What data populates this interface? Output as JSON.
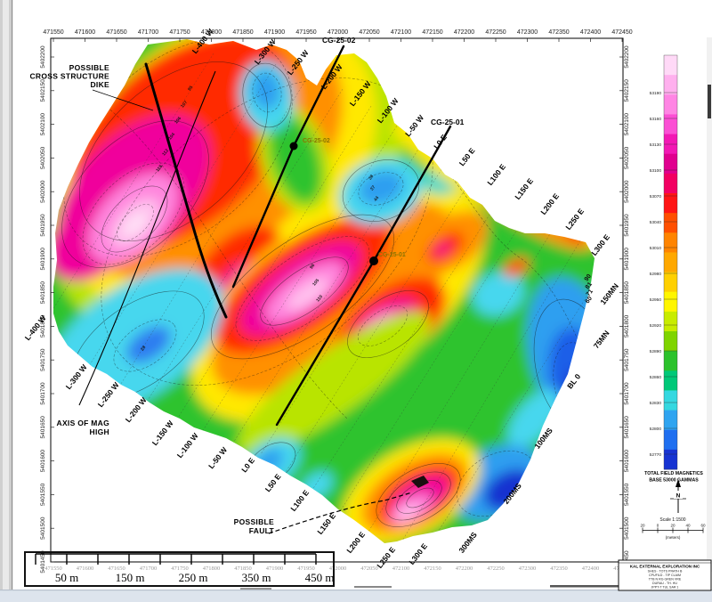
{
  "map": {
    "top_eastings": [
      "471550",
      "471600",
      "471650",
      "471700",
      "471750",
      "471800",
      "471850",
      "471900",
      "471950",
      "472000",
      "472050",
      "472100",
      "472150",
      "472200",
      "472250",
      "472300",
      "472350",
      "472400",
      "472450"
    ],
    "bottom_eastings": [
      "471550",
      "471600",
      "471650",
      "471700",
      "471750",
      "471800",
      "471850",
      "471900",
      "471950",
      "472000",
      "472050",
      "472100",
      "472150",
      "472200",
      "472250",
      "472300",
      "472350",
      "472400",
      "472450"
    ],
    "left_northings": [
      "5402200",
      "5402150",
      "5402100",
      "5402050",
      "5402000",
      "5401950",
      "5401900",
      "5401850",
      "5401800",
      "5401750",
      "5401700",
      "5401650",
      "5401600",
      "5401550",
      "5401500",
      "5401450"
    ],
    "right_northings": [
      "5402200",
      "5402150",
      "5402100",
      "5402050",
      "5402000",
      "5401950",
      "5401900",
      "5401850",
      "5401800",
      "5401750",
      "5401700",
      "5401650",
      "5401600",
      "5401550",
      "5401500",
      "5401450"
    ],
    "line_labels": [
      "L-400 W",
      "L-300 W",
      "L-250 W",
      "L-200 W",
      "L-150 W",
      "L-100 W",
      "L-50 W",
      "L0 E",
      "L50 E",
      "L100 E",
      "L150 E",
      "L200 E",
      "L250 E",
      "L300 E"
    ],
    "tie_line_labels": [
      "150MN",
      "75MN",
      "BL 0",
      "100MS",
      "200MS",
      "300MS"
    ],
    "drillholes": [
      "CG-25-02",
      "CG-25-01"
    ],
    "annotations": {
      "dike_line1": "POSSIBLE",
      "dike_line2": "CROSS STRUCTURE",
      "dike_line3": "DIKE",
      "axis_line1": "AXIS OF MAG",
      "axis_line2": "HIGH",
      "fault_line1": "POSSIBLE",
      "fault_line2": "FAULT"
    },
    "station_values": [
      "95",
      "107",
      "106",
      "104",
      "112",
      "118",
      "38",
      "37",
      "44",
      "96",
      "105",
      "110",
      "90",
      "81",
      "71",
      "60",
      "28"
    ]
  },
  "legend": {
    "title1": "TOTAL FIELD MAGNETICS",
    "title2": "BASE 53000 GAMMAS",
    "labels": [
      "53190",
      "53160",
      "53130",
      "53100",
      "53070",
      "53040",
      "53010",
      "52980",
      "52950",
      "52920",
      "52890",
      "52860",
      "52830",
      "52800",
      "52770"
    ],
    "band_colors": [
      "#ffd9f7",
      "#ffb0ee",
      "#ff85e4",
      "#fb4fd4",
      "#f218b4",
      "#e0008f",
      "#f20062",
      "#ff1515",
      "#ff4f00",
      "#ff8400",
      "#ffa800",
      "#ffd000",
      "#fff600",
      "#c8ec00",
      "#7fd400",
      "#2cc22c",
      "#00c878",
      "#35d8e0",
      "#2fa4f0",
      "#1f6ff0",
      "#1633d2"
    ]
  },
  "north_arrow": {
    "label": "N"
  },
  "mini_scale": {
    "title": "Scale 1:1500",
    "ticks": [
      "20",
      "0",
      "20",
      "40",
      "60"
    ],
    "units": "(meters)"
  },
  "scale_bar": {
    "labels": [
      "50 m",
      "150 m",
      "250 m",
      "350 m",
      "450 m"
    ]
  },
  "title_block": {
    "company": "KAL EXTERNAL EXPLORATION INC",
    "lines": [
      "SHES - TOTS PRATH B",
      "CPUFILD - TIP CLAIM",
      "TTB N RG GREN VRE",
      "DURAU - TH. HU",
      "JPPT-T TUL SAR 1"
    ]
  }
}
